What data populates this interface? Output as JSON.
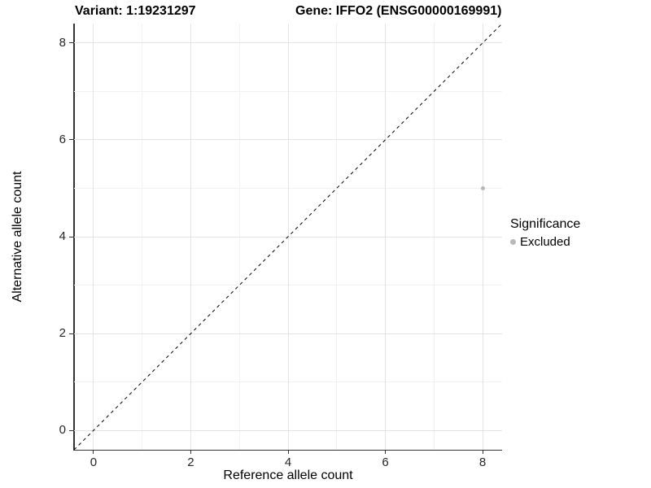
{
  "chart_data": {
    "type": "scatter",
    "titles": {
      "left": "Variant: 1:19231297",
      "right": "Gene: IFFO2 (ENSG00000169991)"
    },
    "xlabel": "Reference allele count",
    "ylabel": "Alternative allele count",
    "xlim": [
      -0.4,
      8.4
    ],
    "ylim": [
      -0.4,
      8.4
    ],
    "x_major_ticks": [
      0,
      2,
      4,
      6,
      8
    ],
    "y_major_ticks": [
      0,
      2,
      4,
      6,
      8
    ],
    "x_minor_gridlines": [
      1,
      3,
      5,
      7
    ],
    "y_minor_gridlines": [
      1,
      3,
      5,
      7
    ],
    "grid": "major-and-minor",
    "identity_line": {
      "slope": 1,
      "intercept": 0,
      "style": "dashed",
      "color": "#000000"
    },
    "series": [
      {
        "name": "Excluded",
        "color": "#b8b8b8",
        "points": [
          {
            "x": 8,
            "y": 5
          }
        ]
      }
    ],
    "legend": {
      "title": "Significance",
      "position": "right",
      "items": [
        {
          "label": "Excluded",
          "color": "#b8b8b8",
          "marker": "circle"
        }
      ]
    },
    "colors": {
      "background": "#ffffff",
      "panel_background": "#ffffff",
      "grid_major": "#e3e3e3",
      "grid_minor": "#f1f1f1",
      "axis_line": "#333333",
      "tick_label": "#262626",
      "title": "#000000"
    }
  }
}
